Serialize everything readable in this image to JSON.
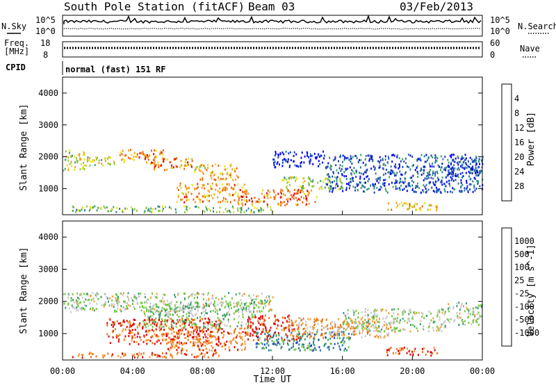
{
  "header": {
    "station": "South Pole Station (fitACF)",
    "beam": "Beam 03",
    "date": "03/Feb/2013"
  },
  "top_panels": {
    "nsky_label": "N.Sky",
    "nsky_ticks": [
      "10^5",
      "10^0"
    ],
    "nsearch_label": "N.Search",
    "freq_label_1": "Freq.",
    "freq_label_2": "[MHz]",
    "freq_ticks": [
      "18",
      "8"
    ],
    "nave_label": "Nave",
    "nave_ticks": [
      "60",
      "0"
    ],
    "cpid_label": "CPID",
    "cpid_value": "normal (fast) 151 RF"
  },
  "chart_data": [
    {
      "type": "heatmap",
      "name": "power",
      "ylabel": "Slant Range [km]",
      "xlabel": "",
      "x_ticks": [
        "00:00",
        "04:00",
        "08:00",
        "12:00",
        "16:00",
        "20:00",
        "00:00"
      ],
      "y_ticks": [
        1000,
        2000,
        3000,
        4000
      ],
      "xlim_hours": [
        0,
        24
      ],
      "ylim_km": [
        180,
        4500
      ],
      "colorbar": {
        "label": "Power [dB]",
        "ticks": [
          "4",
          "8",
          "12",
          "16",
          "20",
          "24",
          "28"
        ],
        "colors": [
          "#0000ff",
          "#1c3fc0",
          "#2c7a9c",
          "#3ea06a",
          "#8cc83c",
          "#e8e020",
          "#f0a020",
          "#f06010",
          "#e00000"
        ]
      },
      "regions": [
        {
          "t": [
            0.0,
            1.3
          ],
          "r": [
            1600,
            2250
          ],
          "level": 0.55
        },
        {
          "t": [
            1.3,
            3.2
          ],
          "r": [
            1750,
            2050
          ],
          "level": 0.6
        },
        {
          "t": [
            3.2,
            5.8
          ],
          "r": [
            1850,
            2250
          ],
          "level": 0.75
        },
        {
          "t": [
            5.0,
            7.5
          ],
          "r": [
            1600,
            2000
          ],
          "level": 0.8
        },
        {
          "t": [
            7.5,
            10.0
          ],
          "r": [
            1300,
            1800
          ],
          "level": 0.7
        },
        {
          "t": [
            6.5,
            10.5
          ],
          "r": [
            600,
            1200
          ],
          "level": 0.75
        },
        {
          "t": [
            10.0,
            14.5
          ],
          "r": [
            500,
            1000
          ],
          "level": 0.8
        },
        {
          "t": [
            12.5,
            16.0
          ],
          "r": [
            1000,
            1400
          ],
          "level": 0.5
        },
        {
          "t": [
            15.0,
            24.0
          ],
          "r": [
            900,
            2100
          ],
          "level": 0.2
        },
        {
          "t": [
            12.0,
            15.0
          ],
          "r": [
            1700,
            2200
          ],
          "level": 0.1
        },
        {
          "t": [
            18.5,
            21.5
          ],
          "r": [
            350,
            600
          ],
          "level": 0.65
        },
        {
          "t": [
            0.5,
            12.0
          ],
          "r": [
            280,
            480
          ],
          "level": 0.45
        },
        {
          "t": [
            22.0,
            24.0
          ],
          "r": [
            1400,
            2000
          ],
          "level": 0.15
        }
      ]
    },
    {
      "type": "heatmap",
      "name": "velocity",
      "ylabel": "Slant Range [km]",
      "xlabel": "Time UT",
      "x_ticks": [
        "00:00",
        "04:00",
        "08:00",
        "12:00",
        "16:00",
        "20:00",
        "00:00"
      ],
      "y_ticks": [
        1000,
        2000,
        3000,
        4000
      ],
      "xlim_hours": [
        0,
        24
      ],
      "ylim_km": [
        180,
        4500
      ],
      "colorbar": {
        "label": "Velocity [m s^-1]",
        "ticks": [
          "1000",
          "500",
          "100",
          "25",
          "-25",
          "-100",
          "-500",
          "-1000"
        ],
        "colors": [
          "#1c3fd0",
          "#2c6ca0",
          "#3a9a70",
          "#70c840",
          "#c8c8c8",
          "#f0a040",
          "#f07010",
          "#e00000"
        ]
      },
      "regions": [
        {
          "t": [
            0.0,
            12.0
          ],
          "r": [
            1700,
            2300
          ],
          "level": 0.5
        },
        {
          "t": [
            4.5,
            11.0
          ],
          "r": [
            1200,
            2000
          ],
          "level": 0.45
        },
        {
          "t": [
            2.5,
            9.0
          ],
          "r": [
            700,
            1500
          ],
          "level": 0.85
        },
        {
          "t": [
            6.0,
            10.5
          ],
          "r": [
            500,
            1200
          ],
          "level": 0.8
        },
        {
          "t": [
            10.5,
            13.5
          ],
          "r": [
            800,
            1600
          ],
          "level": 0.9
        },
        {
          "t": [
            11.0,
            16.5
          ],
          "r": [
            500,
            1100
          ],
          "level": 0.25
        },
        {
          "t": [
            13.0,
            19.0
          ],
          "r": [
            900,
            1500
          ],
          "level": 0.7
        },
        {
          "t": [
            16.0,
            22.0
          ],
          "r": [
            1100,
            1800
          ],
          "level": 0.5
        },
        {
          "t": [
            18.5,
            21.5
          ],
          "r": [
            350,
            600
          ],
          "level": 0.85
        },
        {
          "t": [
            0.5,
            9.0
          ],
          "r": [
            280,
            450
          ],
          "level": 0.85
        },
        {
          "t": [
            22.0,
            24.0
          ],
          "r": [
            1300,
            2000
          ],
          "level": 0.5
        }
      ]
    }
  ]
}
